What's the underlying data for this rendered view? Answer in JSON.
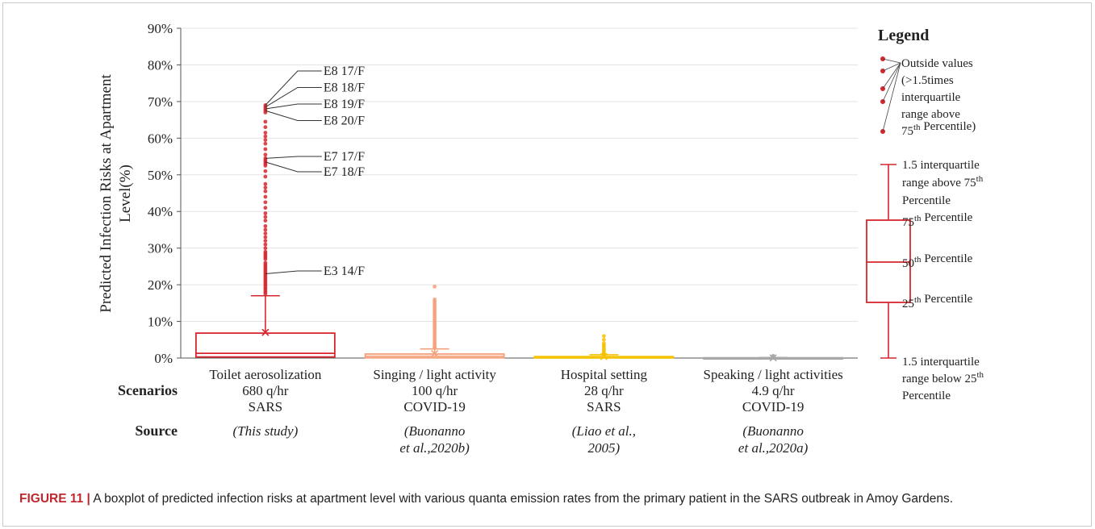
{
  "chart_data": {
    "type": "box",
    "ylabel": "Predicted Infection Risks at Apartment Level(%)",
    "ylim": [
      0,
      90
    ],
    "yticks": [
      "0%",
      "10%",
      "20%",
      "30%",
      "40%",
      "50%",
      "60%",
      "70%",
      "80%",
      "90%"
    ],
    "grid": "horizontal",
    "row_labels": {
      "scenarios": "Scenarios",
      "source": "Source"
    },
    "groups": [
      {
        "label": "Toilet aerosolization",
        "rate": "680 q/hr",
        "disease": "SARS",
        "source": [
          "(This study)"
        ],
        "color": "#d7262e",
        "q1": 0.3,
        "median": 1.3,
        "q3": 6.8,
        "whisker_low": 0,
        "whisker_high": 17,
        "mean": 7,
        "outliers": [
          69,
          68.5,
          68,
          67.5,
          67,
          64.5,
          63,
          61.5,
          60.5,
          59.5,
          58.5,
          57,
          55.5,
          54.5,
          54,
          53.5,
          53,
          52.5,
          51,
          49.5,
          47.5,
          46.5,
          45.5,
          44,
          42.5,
          41,
          39.5,
          38.5,
          37.5,
          36,
          35,
          34,
          33,
          32,
          31,
          30,
          29,
          28.5,
          28,
          27.5,
          27,
          26,
          25.5,
          25,
          24.5,
          24,
          23.5,
          23,
          22.5,
          22,
          21.5,
          21,
          20.5,
          20,
          19.5,
          19,
          18.5,
          18,
          17.5
        ],
        "annotations": [
          {
            "text": "E8 17/F",
            "value": 69
          },
          {
            "text": "E8 18/F",
            "value": 68.5
          },
          {
            "text": "E8 19/F",
            "value": 68
          },
          {
            "text": "E8 20/F",
            "value": 67.5
          },
          {
            "text": "E7 17/F",
            "value": 54.5
          },
          {
            "text": "E7 18/F",
            "value": 53.5
          },
          {
            "text": "E3 14/F",
            "value": 23
          }
        ]
      },
      {
        "label": "Singing / light activity",
        "rate": "100 q/hr",
        "disease": "COVID-19",
        "source": [
          "(Buonanno",
          "et al.,2020b)"
        ],
        "color": "#f4a07a",
        "q1": 0.05,
        "median": 0.5,
        "q3": 1.1,
        "whisker_low": 0,
        "whisker_high": 2.5,
        "mean": 1.2,
        "outliers": [
          19.5,
          16,
          15.5,
          15,
          14.5,
          14,
          13.5,
          13,
          12.5,
          12,
          11.5,
          11,
          10.5,
          10,
          9.5,
          9,
          8.5,
          8,
          7.5,
          7,
          6.5,
          6,
          5.5,
          5,
          4.5,
          4,
          3.5,
          3,
          2.8
        ]
      },
      {
        "label": "Hospital setting",
        "rate": "28 q/hr",
        "disease": "SARS",
        "source": [
          "(Liao et al.,",
          "2005)"
        ],
        "color": "#f5c200",
        "q1": 0.02,
        "median": 0.2,
        "q3": 0.4,
        "whisker_low": 0,
        "whisker_high": 0.9,
        "mean": 0.4,
        "outliers": [
          6,
          5,
          4,
          3.5,
          3,
          2.5,
          2,
          1.6,
          1.3,
          1.1
        ]
      },
      {
        "label": "Speaking / light activities",
        "rate": "4.9 q/hr",
        "disease": "COVID-19",
        "source": [
          "(Buonanno",
          "et al.,2020a)"
        ],
        "color": "#a8a8a8",
        "q1": 0,
        "median": 0.03,
        "q3": 0.08,
        "whisker_low": 0,
        "whisker_high": 0.15,
        "mean": 0.05,
        "outliers": [
          0.6,
          0.4
        ]
      }
    ],
    "legend": {
      "title": "Legend",
      "outside_values": [
        "Outside values",
        "(>1.5times",
        "interquartile",
        "range above",
        "75th Percentile)"
      ],
      "whisker_high": [
        "1.5 interquartile",
        "range above 75th",
        "Percentile"
      ],
      "q3": "75th Percentile",
      "median": "50th Percentile",
      "q1": "25th Percentile",
      "whisker_low": [
        "1.5 interquartile",
        "range below 25th",
        "Percentile"
      ]
    }
  },
  "caption": {
    "label": "FIGURE 11 |",
    "text": " A boxplot of predicted infection risks at apartment level with various quanta emission rates from the primary patient in the SARS outbreak in Amoy Gardens."
  }
}
